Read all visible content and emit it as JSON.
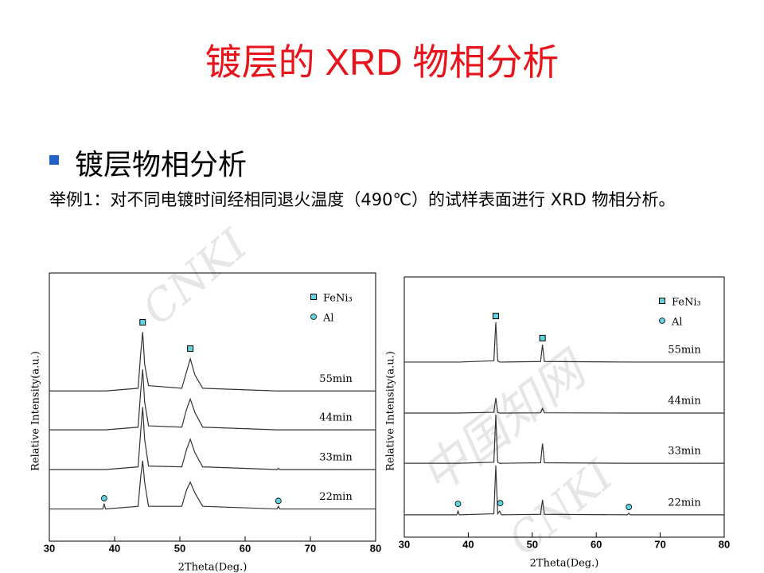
{
  "header": {
    "title": "镀层的 XRD 物相分析"
  },
  "bullet": "镀层物相分析",
  "paragraph": "举例1：对不同电镀时间经相同退火温度（490℃）的试样表面进行 XRD 物相分析。",
  "watermarks": [
    "CNKI",
    "中国知网",
    "CNKI"
  ],
  "chart_data": [
    {
      "type": "line",
      "xlabel": "2Theta(Deg.)",
      "ylabel": "Relative Intensity(a.u.)",
      "xlim": [
        30,
        80
      ],
      "xticks": [
        30,
        40,
        50,
        60,
        70,
        80
      ],
      "ylim": [
        0,
        100
      ],
      "x": [
        30,
        38.2,
        38.4,
        38.6,
        43.6,
        44.0,
        44.3,
        44.6,
        45.2,
        50.3,
        51.0,
        51.6,
        52.3,
        53.5,
        64.9,
        65.1,
        65.3,
        80
      ],
      "series": [
        {
          "name": "55min",
          "color": "#333333",
          "values": [
            56,
            56,
            56,
            56,
            57,
            70,
            78,
            66,
            58,
            57,
            63,
            68,
            62,
            57,
            56,
            56,
            56,
            56
          ]
        },
        {
          "name": "44min",
          "color": "#333333",
          "values": [
            41.5,
            41.5,
            41.5,
            41.5,
            42.5,
            56,
            64,
            52,
            43,
            42.5,
            49,
            53,
            48,
            42.5,
            41.5,
            41.5,
            41.5,
            41.5
          ]
        },
        {
          "name": "33min",
          "color": "#333333",
          "values": [
            26.7,
            26.7,
            26.7,
            26.7,
            27.7,
            41,
            50,
            38,
            28,
            27.7,
            34,
            38,
            33,
            27.7,
            26.7,
            27.2,
            26.7,
            26.7
          ]
        },
        {
          "name": "22min",
          "color": "#333333",
          "values": [
            12,
            12,
            14,
            12,
            13,
            24,
            30,
            22,
            13,
            13,
            19,
            22,
            18,
            13,
            12,
            13,
            12,
            12
          ]
        }
      ],
      "markers": [
        {
          "name": "FeNi₃",
          "color": "#5fd3e0",
          "shape": "square",
          "x": [
            44.3,
            51.6
          ],
          "values": [
            81.6,
            71.8
          ]
        },
        {
          "name": "Al",
          "color": "#5fd3e0",
          "shape": "circle",
          "x": [
            38.4,
            65.1
          ],
          "values": [
            16,
            15
          ]
        }
      ]
    },
    {
      "type": "line",
      "xlabel": "2Theta(Deg.)",
      "ylabel": "Relative Intensity(a.u.)",
      "xlim": [
        30,
        80
      ],
      "xticks": [
        30,
        40,
        50,
        60,
        70,
        80
      ],
      "ylim": [
        0,
        100
      ],
      "x": [
        30,
        38.2,
        38.4,
        38.6,
        44.0,
        44.3,
        44.6,
        44.9,
        45.2,
        51.3,
        51.6,
        51.9,
        64.9,
        65.1,
        65.3,
        80
      ],
      "series": [
        {
          "name": "55min",
          "color": "#333333",
          "values": [
            67.3,
            67.3,
            67.3,
            67.3,
            67.8,
            82.6,
            67.8,
            67.3,
            67.3,
            67.5,
            74,
            67.5,
            67.3,
            67.3,
            67.3,
            67.3
          ]
        },
        {
          "name": "44min",
          "color": "#333333",
          "values": [
            47.7,
            47.7,
            47.7,
            47.7,
            48,
            53.5,
            48,
            47.7,
            47.7,
            47.8,
            49.5,
            47.8,
            47.7,
            47.7,
            47.7,
            47.7
          ]
        },
        {
          "name": "33min",
          "color": "#333333",
          "values": [
            28.4,
            28.4,
            28.4,
            28.4,
            28.8,
            47,
            28.8,
            28.4,
            28.4,
            28.6,
            36,
            28.6,
            28.4,
            28.4,
            28.4,
            28.4
          ]
        },
        {
          "name": "22min",
          "color": "#333333",
          "values": [
            8.6,
            8.6,
            10,
            8.6,
            9,
            27.5,
            9,
            10,
            8.6,
            8.8,
            14.4,
            8.8,
            8.6,
            9.2,
            8.6,
            8.6
          ]
        }
      ],
      "markers": [
        {
          "name": "FeNi₃",
          "color": "#5fd3e0",
          "shape": "square",
          "x": [
            44.3,
            51.6
          ],
          "values": [
            85,
            76.5
          ]
        },
        {
          "name": "Al",
          "color": "#5fd3e0",
          "shape": "circle",
          "x": [
            38.4,
            45.0,
            65.1
          ],
          "values": [
            12.8,
            13.1,
            11.6
          ]
        }
      ]
    }
  ]
}
